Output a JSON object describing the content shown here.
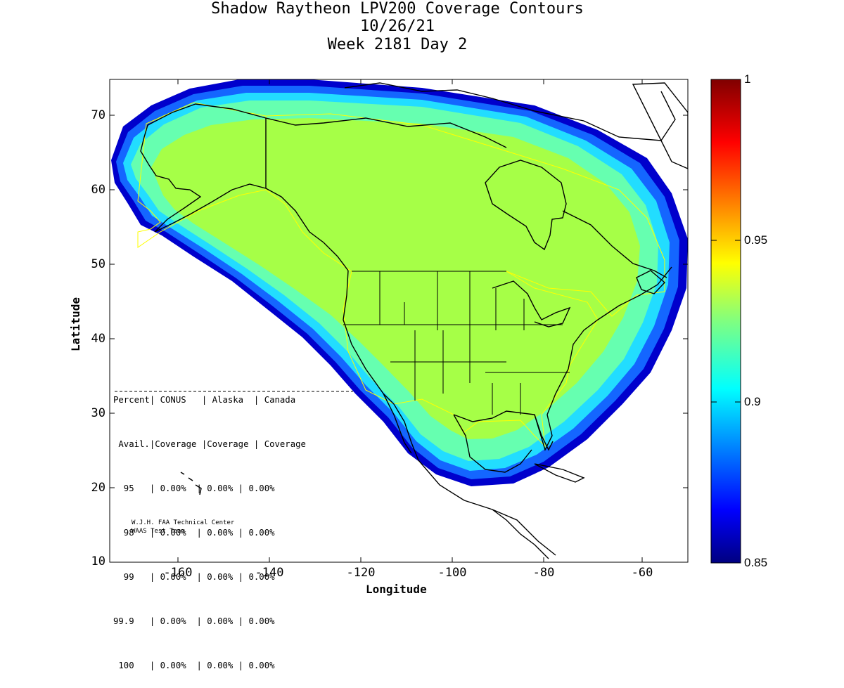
{
  "title": {
    "line1": "Shadow Raytheon LPV200 Coverage Contours",
    "line2": "10/26/21",
    "line3": "Week 2181 Day 2"
  },
  "axes": {
    "xlabel": "Longitude",
    "ylabel": "Latitude",
    "xticks": [
      "-160",
      "-140",
      "-120",
      "-100",
      "-80",
      "-60"
    ],
    "yticks": [
      "70",
      "60",
      "50",
      "40",
      "30",
      "20",
      "10"
    ]
  },
  "colorbar": {
    "ticks": [
      "1",
      "0.95",
      "0.9",
      "0.85"
    ],
    "range": [
      0.85,
      1.0
    ],
    "colormap": "jet"
  },
  "stats_table": {
    "header1": "Percent| CONUS   | Alaska  | Canada",
    "header2": " Avail.|Coverage |Coverage | Coverage",
    "rows": [
      "  95   | 0.00%  | 0.00% | 0.00%",
      "  98   | 0.00%  | 0.00% | 0.00%",
      "  99   | 0.00%  | 0.00% | 0.00%",
      "99.9   | 0.00%  | 0.00% | 0.00%",
      " 100   | 0.00%  | 0.00% | 0.00%"
    ]
  },
  "credit": {
    "line1": "W.J.H. FAA Technical Center",
    "line2": "WAAS Test Team"
  },
  "colors": {
    "interior": "#a6ff47",
    "band_green": "#66ffb0",
    "band_cyan": "#22ddff",
    "band_blue": "#1466ff",
    "band_deep": "#0000cc",
    "outline": "#000000",
    "region_border": "#ffff00"
  }
}
